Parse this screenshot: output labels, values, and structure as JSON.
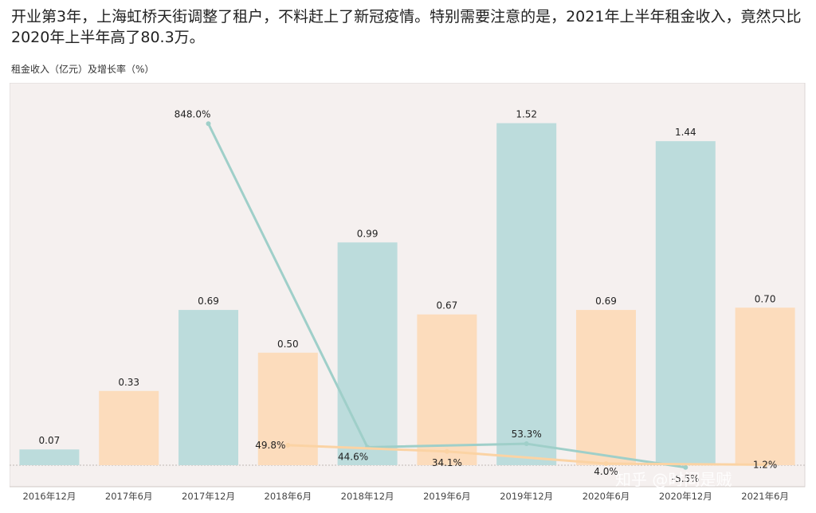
{
  "headline": "开业第3年，上海虹桥天街调整了租户，不料赶上了新冠疫情。特别需要注意的是，2021年上半年租金收入，竟然只比2020年上半年高了80.3万。",
  "subtitle": "租金收入（亿元）及增长率（%）",
  "watermark": "知乎 @时间是贼",
  "colors": {
    "teal": "#bcdcdc",
    "peach": "#fcdcbc",
    "teal_line": "#9fcfc9",
    "peach_line": "#fbd3a4",
    "plot_bg": "#f5f0ef"
  },
  "chart_data": {
    "type": "bar",
    "categories": [
      "2016年12月",
      "2017年6月",
      "2017年12月",
      "2018年6月",
      "2018年12月",
      "2019年6月",
      "2019年12月",
      "2020年6月",
      "2020年12月",
      "2021年6月"
    ],
    "values": [
      0.07,
      0.33,
      0.69,
      0.5,
      0.99,
      0.67,
      1.52,
      0.69,
      1.44,
      0.7
    ],
    "value_labels": [
      "0.07",
      "0.33",
      "0.69",
      "0.50",
      "0.99",
      "0.67",
      "1.52",
      "0.69",
      "1.44",
      "0.70"
    ],
    "bar_colors": [
      "teal",
      "peach",
      "teal",
      "peach",
      "teal",
      "peach",
      "teal",
      "peach",
      "teal",
      "peach"
    ],
    "ylim": [
      0,
      1.6
    ],
    "rate_lines": [
      {
        "color": "teal_line",
        "points": [
          [
            2,
            848.0
          ],
          [
            4,
            44.6
          ],
          [
            6,
            53.3
          ],
          [
            8,
            -5.5
          ]
        ],
        "labels": [
          "848.0%",
          "44.6%",
          "53.3%",
          "-5.5%"
        ]
      },
      {
        "color": "peach_line",
        "points": [
          [
            3,
            49.8
          ],
          [
            5,
            34.1
          ],
          [
            7,
            4.0
          ],
          [
            9,
            1.2
          ]
        ],
        "labels": [
          "49.8%",
          "34.1%",
          "4.0%",
          "1.2%"
        ]
      }
    ],
    "rate_ylim": [
      -60,
      900
    ]
  }
}
